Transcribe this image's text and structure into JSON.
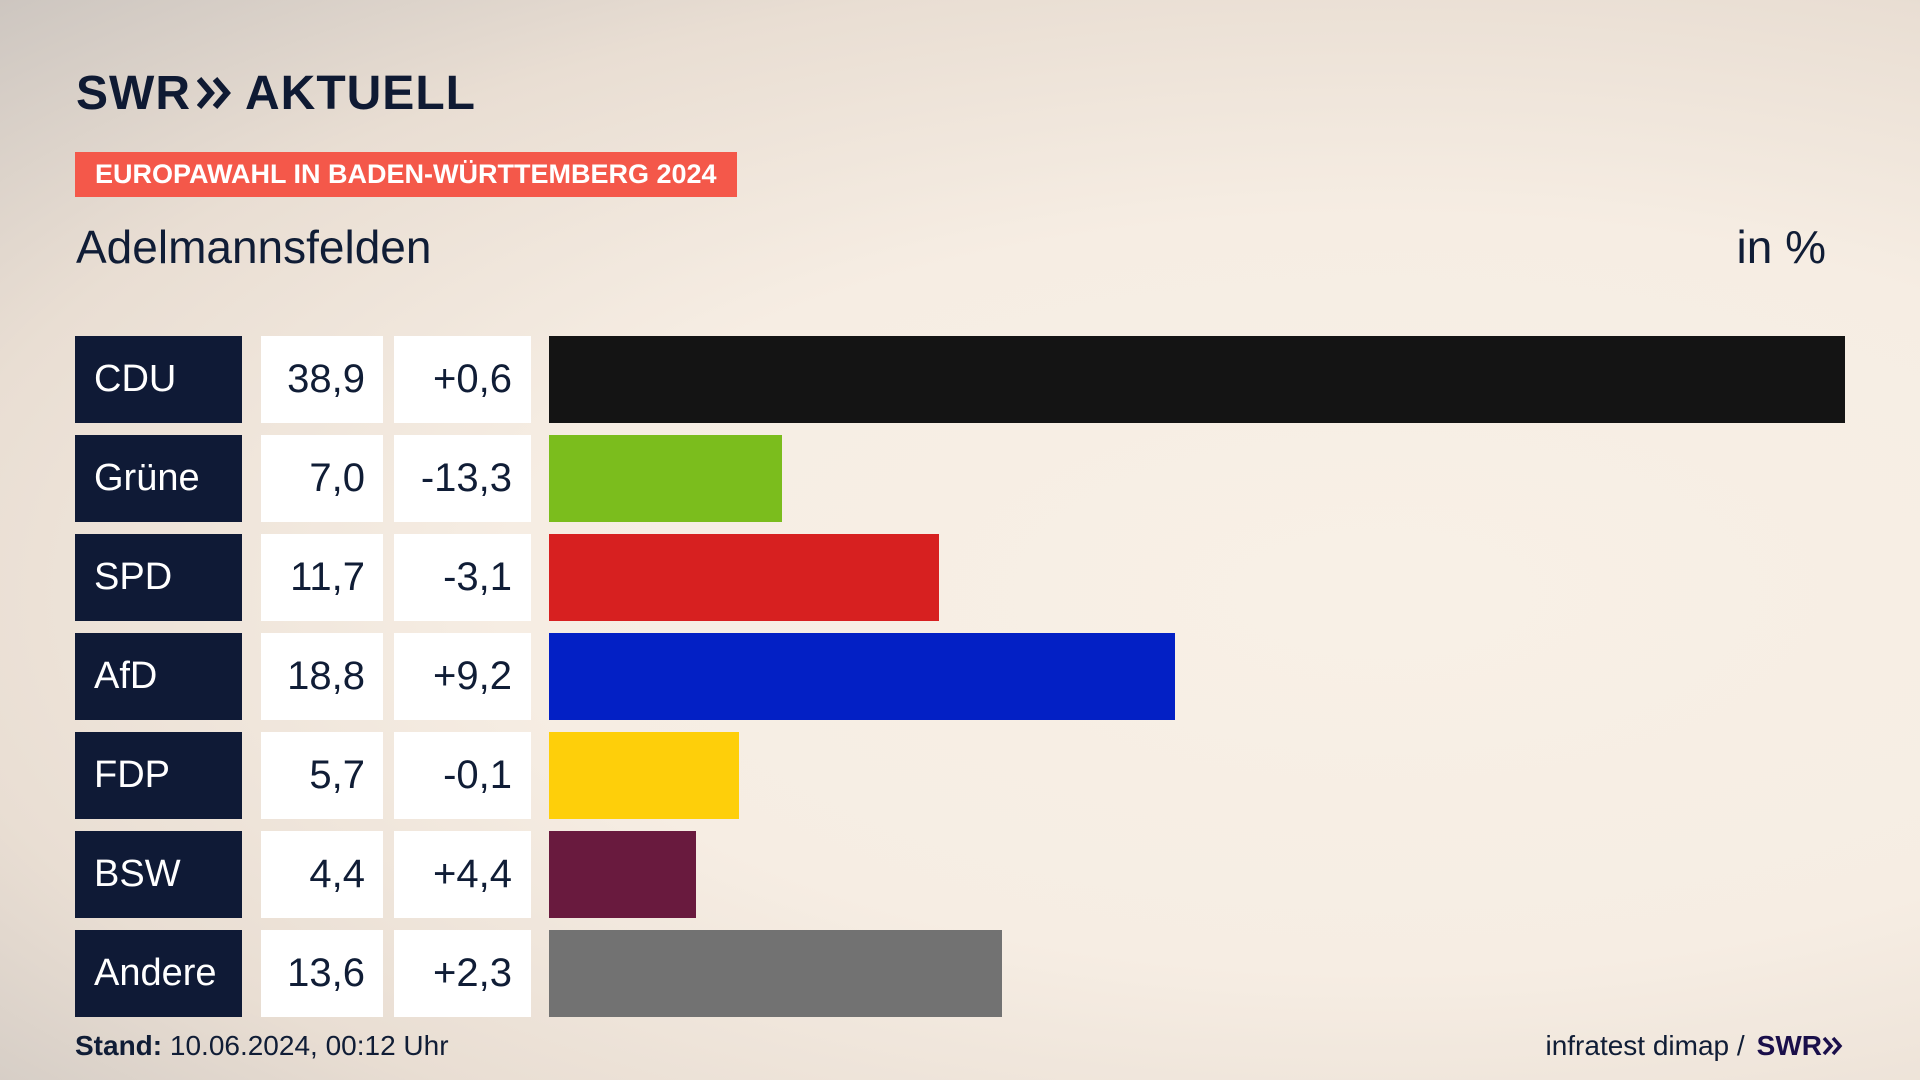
{
  "brand": {
    "logo_left": "SWR",
    "logo_right": "AKTUELL"
  },
  "badge": "EUROPAWAHL IN BADEN-WÜRTTEMBERG 2024",
  "place": "Adelmannsfelden",
  "unit": "in %",
  "footer": {
    "stand_label": "Stand:",
    "stand_value": "10.06.2024, 00:12 Uhr",
    "source": "infratest dimap /",
    "source_logo": "SWR"
  },
  "chart_data": {
    "type": "bar",
    "orientation": "horizontal",
    "categories": [
      "CDU",
      "Grüne",
      "SPD",
      "AfD",
      "FDP",
      "BSW",
      "Andere"
    ],
    "values": [
      38.9,
      7.0,
      11.7,
      18.8,
      5.7,
      4.4,
      13.6
    ],
    "value_labels": [
      "38,9",
      "7,0",
      "11,7",
      "18,8",
      "5,7",
      "4,4",
      "13,6"
    ],
    "change_labels": [
      "+0,6",
      "-13,3",
      "-3,1",
      "+9,2",
      "-0,1",
      "+4,4",
      "+2,3"
    ],
    "changes": [
      0.6,
      -13.3,
      -3.1,
      9.2,
      -0.1,
      4.4,
      2.3
    ],
    "colors": [
      "#141414",
      "#7bbd1d",
      "#d72020",
      "#0320c5",
      "#fecf0a",
      "#691a3e",
      "#727272"
    ],
    "xlim": [
      0,
      38.9
    ]
  }
}
